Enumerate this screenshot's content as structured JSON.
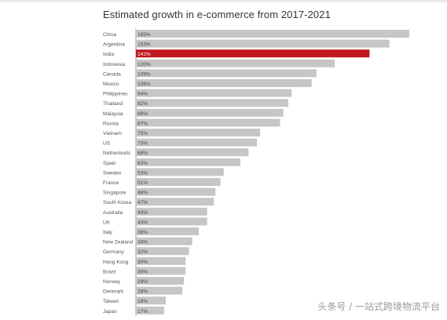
{
  "chart_data": {
    "type": "bar",
    "orientation": "horizontal",
    "title": "Estimated growth in e-commerce from 2017-2021",
    "xlabel": "",
    "ylabel": "",
    "xlim": [
      0,
      165
    ],
    "grid": false,
    "legend": "none",
    "categories": [
      "China",
      "Argentina",
      "India",
      "Indonesia",
      "Canada",
      "Mexico",
      "Philippines",
      "Thailand",
      "Malaysia",
      "Russia",
      "Vietnam",
      "US",
      "Netherlands",
      "Spain",
      "Sweden",
      "France",
      "Singapore",
      "South Korea",
      "Australia",
      "UK",
      "Italy",
      "New Zealand",
      "Germany",
      "Hong Kong",
      "Brazil",
      "Norway",
      "Denmark",
      "Taiwan",
      "Japan"
    ],
    "values": [
      165,
      153,
      141,
      120,
      109,
      106,
      94,
      92,
      89,
      87,
      75,
      73,
      68,
      63,
      53,
      51,
      48,
      47,
      43,
      43,
      38,
      34,
      32,
      30,
      30,
      29,
      28,
      18,
      17
    ],
    "value_labels": [
      "165%",
      "153%",
      "141%",
      "120%",
      "109%",
      "106%",
      "94%",
      "92%",
      "89%",
      "87%",
      "75%",
      "73%",
      "68%",
      "63%",
      "53%",
      "51%",
      "48%",
      "47%",
      "43%",
      "43%",
      "38%",
      "34%",
      "32%",
      "30%",
      "30%",
      "29%",
      "28%",
      "18%",
      "17%"
    ],
    "highlight": "India",
    "colors": {
      "bar": "#c6c6c6",
      "highlight": "#c0191f",
      "label": "#555555",
      "value_label": "#444444",
      "value_label_highlight": "#ffffff",
      "axis": "#888888"
    }
  },
  "watermark": {
    "text": "头条号 / 一站式跨境物流平台"
  }
}
